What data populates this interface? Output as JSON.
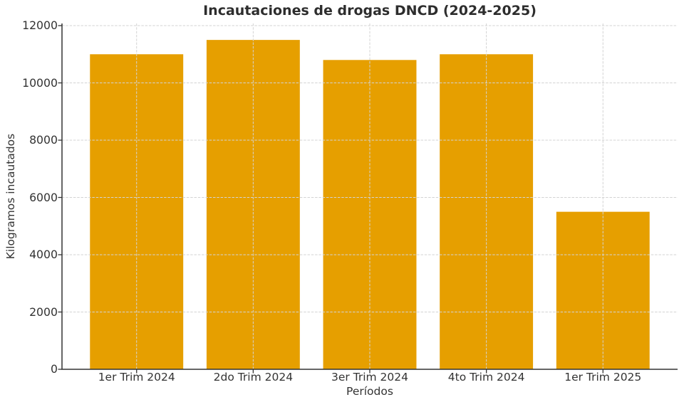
{
  "chart_data": {
    "type": "bar",
    "title": "Incautaciones de drogas DNCD (2024-2025)",
    "xlabel": "Períodos",
    "ylabel": "Kilogramos incautados",
    "categories": [
      "1er Trim 2024",
      "2do Trim 2024",
      "3er Trim 2024",
      "4to Trim 2024",
      "1er Trim 2025"
    ],
    "values": [
      11000,
      11500,
      10800,
      11000,
      5500
    ],
    "ylim": [
      0,
      12000
    ],
    "yticks": [
      0,
      2000,
      4000,
      6000,
      8000,
      10000,
      12000
    ],
    "bar_color": "#E69F00",
    "grid": true,
    "grid_style": "dashed",
    "grid_color": "#d3d3d3",
    "axis_color": "#333333",
    "text_color": "#333333",
    "background": "#ffffff",
    "legend": null
  }
}
